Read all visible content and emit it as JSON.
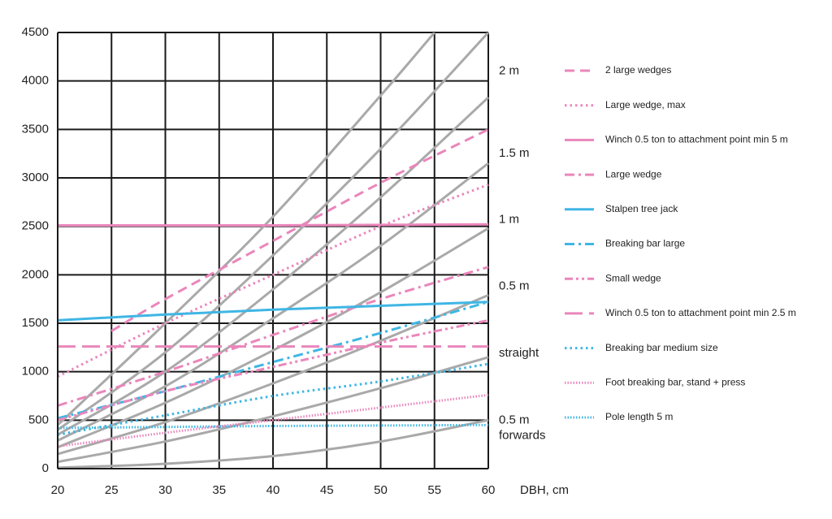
{
  "chart_data": {
    "type": "line",
    "xlabel": "DBH, cm",
    "x": [
      20,
      30,
      40,
      50,
      60
    ],
    "xlim": [
      20,
      60
    ],
    "xticks": [
      20,
      25,
      30,
      35,
      40,
      45,
      50,
      55,
      60
    ],
    "ylim": [
      0,
      4500
    ],
    "yticks": [
      0,
      500,
      1000,
      1500,
      2000,
      2500,
      3000,
      3500,
      4000,
      4500
    ],
    "grid": true,
    "legend": "right",
    "annotations": [
      {
        "lines": [
          "2 m"
        ],
        "y": 4100
      },
      {
        "lines": [
          "1.5 m"
        ],
        "y": 3250
      },
      {
        "lines": [
          "1 m"
        ],
        "y": 2570
      },
      {
        "lines": [
          "0.5 m"
        ],
        "y": 1880
      },
      {
        "lines": [
          "straight"
        ],
        "y": 1190
      },
      {
        "lines": [
          "0.5 m",
          "forwards"
        ],
        "y": 500
      }
    ],
    "series": [
      {
        "color": "#a9a9a9",
        "dash": "solid",
        "x": [
          20,
          30,
          40,
          50,
          55
        ],
        "values": [
          450,
          1500,
          2600,
          3850,
          4500
        ]
      },
      {
        "color": "#a9a9a9",
        "dash": "solid",
        "values": [
          400,
          1200,
          2200,
          3300,
          4500
        ]
      },
      {
        "color": "#a9a9a9",
        "dash": "solid",
        "values": [
          350,
          1000,
          1850,
          2800,
          3830
        ]
      },
      {
        "color": "#a9a9a9",
        "dash": "solid",
        "values": [
          290,
          850,
          1550,
          2300,
          3150
        ]
      },
      {
        "color": "#a9a9a9",
        "dash": "solid",
        "values": [
          220,
          680,
          1220,
          1820,
          2480
        ]
      },
      {
        "color": "#a9a9a9",
        "dash": "solid",
        "values": [
          150,
          480,
          880,
          1320,
          1790
        ]
      },
      {
        "color": "#a9a9a9",
        "dash": "solid",
        "values": [
          70,
          280,
          540,
          830,
          1150
        ]
      },
      {
        "color": "#a9a9a9",
        "dash": "solid",
        "values": [
          10,
          50,
          130,
          280,
          500
        ]
      },
      {
        "name": "2 large wedges",
        "color": "#ea86bb",
        "dash": "dashed",
        "x": [
          25,
          30,
          40,
          50,
          60
        ],
        "values": [
          1420,
          1750,
          2350,
          2950,
          3500
        ]
      },
      {
        "name": "Large wedge, max",
        "color": "#ea86bb",
        "dash": "dotted",
        "values": [
          950,
          1500,
          2000,
          2500,
          2930
        ]
      },
      {
        "name": "Winch 0.5 ton to attachment point min 5 m",
        "color": "#ea86bb",
        "dash": "solid",
        "values": [
          2510,
          2510,
          2510,
          2515,
          2520
        ]
      },
      {
        "name": "Large wedge",
        "color": "#ea86bb",
        "dash": "dashdot",
        "values": [
          650,
          1000,
          1380,
          1750,
          2080
        ]
      },
      {
        "name": "Stalpen tree jack",
        "color": "#3fb6e4",
        "dash": "solid",
        "values": [
          1530,
          1590,
          1640,
          1680,
          1720
        ]
      },
      {
        "name": "Breaking bar large",
        "color": "#3fb6e4",
        "dash": "dashdot",
        "values": [
          520,
          800,
          1100,
          1400,
          1720
        ]
      },
      {
        "name": "Small wedge",
        "color": "#ea86bb",
        "dash": "dashdotdot",
        "values": [
          500,
          800,
          1050,
          1300,
          1530
        ]
      },
      {
        "name": "Winch 0.5 ton to attachment point min 2.5 m",
        "color": "#ea86bb",
        "dash": "longdash",
        "values": [
          1260,
          1260,
          1260,
          1260,
          1260
        ]
      },
      {
        "name": "Breaking bar medium size",
        "color": "#3fb6e4",
        "dash": "dotted",
        "values": [
          350,
          550,
          750,
          900,
          1080
        ]
      },
      {
        "name": "Foot breaking bar, stand + press",
        "color": "#ea86bb",
        "dash": "finedotted",
        "values": [
          230,
          370,
          500,
          630,
          760
        ]
      },
      {
        "name": "Pole length 5 m",
        "color": "#3fb6e4",
        "dash": "finedotted",
        "values": [
          420,
          430,
          440,
          445,
          450
        ]
      }
    ]
  }
}
